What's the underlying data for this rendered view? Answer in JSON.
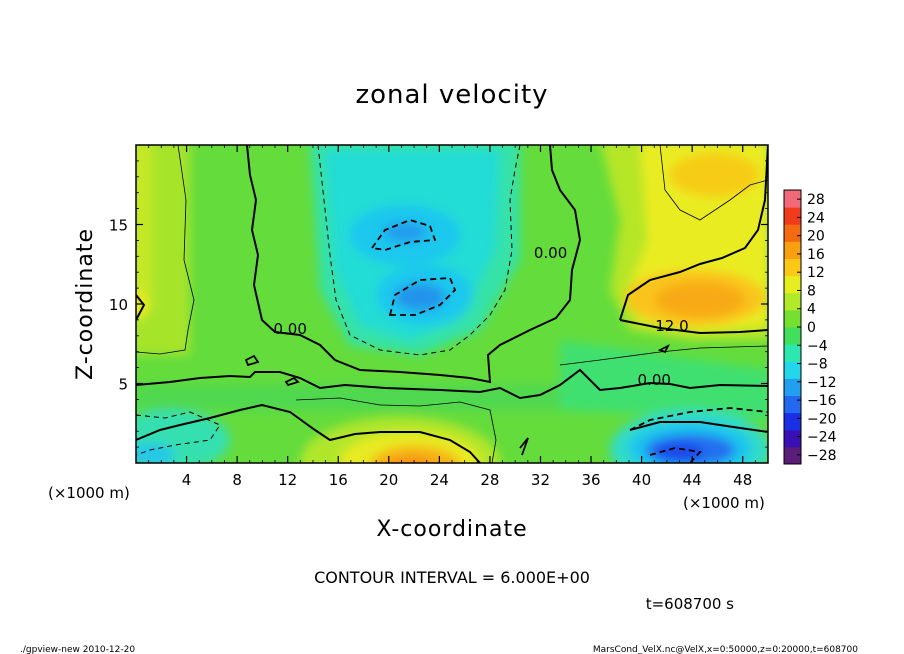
{
  "chart_data": {
    "type": "heatmap",
    "title": "zonal velocity",
    "xlabel": "X-coordinate",
    "ylabel": "Z-coordinate",
    "x_units_label": "(×1000 m)",
    "y_units_label": "(×1000 m)",
    "xlim": [
      0,
      50
    ],
    "ylim": [
      0,
      20
    ],
    "x_ticks": [
      "4",
      "8",
      "12",
      "16",
      "20",
      "24",
      "28",
      "32",
      "36",
      "40",
      "44",
      "48"
    ],
    "x_tick_values": [
      4,
      8,
      12,
      16,
      20,
      24,
      28,
      32,
      36,
      40,
      44,
      48
    ],
    "y_ticks": [
      "5",
      "10",
      "15"
    ],
    "y_tick_values": [
      5,
      10,
      15
    ],
    "colorbar": {
      "labels": [
        "28",
        "24",
        "20",
        "16",
        "12",
        "8",
        "4",
        "0",
        "−4",
        "−8",
        "−12",
        "−16",
        "−20",
        "−24",
        "−28"
      ],
      "values": [
        28,
        24,
        20,
        16,
        12,
        8,
        4,
        0,
        -4,
        -8,
        -12,
        -16,
        -20,
        -24,
        -28
      ],
      "range": [
        -30,
        30
      ],
      "colors": [
        "#5a1e7a",
        "#3a10b4",
        "#1a2ee6",
        "#2268f0",
        "#20a0ee",
        "#22d6ec",
        "#2ce8b0",
        "#40e05a",
        "#74e030",
        "#b0ea28",
        "#e6ee20",
        "#fcc818",
        "#f8a010",
        "#f46a10",
        "#f03c1a",
        "#f26a7a"
      ]
    },
    "contour_labels": [
      {
        "text": "0.00",
        "x": 12.2,
        "z": 8.1
      },
      {
        "text": "0.00",
        "x": 32.8,
        "z": 12.9
      },
      {
        "text": "12.0",
        "x": 42.4,
        "z": 8.3
      },
      {
        "text": "0.00",
        "x": 41.0,
        "z": 4.9
      }
    ],
    "contour_interval_text": "CONTOUR INTERVAL = 6.000E+00",
    "time_text": "t=608700 s",
    "grid": false,
    "legend": "right"
  },
  "footer": {
    "left": "./gpview-new  2010-12-20",
    "right": "MarsCond_VelX.nc@VelX,x=0:50000,z=0:20000,t=608700"
  }
}
